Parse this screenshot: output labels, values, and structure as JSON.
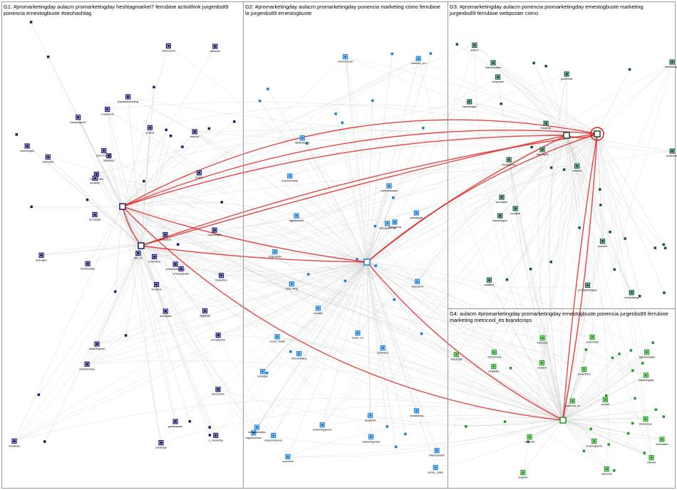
{
  "groups": [
    {
      "id": "G1",
      "title": "G1: #promarketingday aulacm promarketingday heshtagmarket7 ferrubioe activithink jurgenbs89 ponencia ernestogbuste #seohashtag",
      "color": "#1a1a6e"
    },
    {
      "id": "G2",
      "title": "G2: #promarketingday aulacm promarketingday ponencia marketing cómo ferrubioe la jurgenbs89 ernestogbuste",
      "color": "#1a7fd6"
    },
    {
      "id": "G3",
      "title": "G3: #promarketingday aulacm ponencia promarketingday ernestogbuste marketing jurgenbs89 ferrubioe webposter cómo",
      "color": "#0e5a36"
    },
    {
      "id": "G4",
      "title": "G4: aulacm #promarketingday promarketingday ernestogbuste ponencia jurgenbs89 ferrubioe marketing metricool_es brandcrops",
      "color": "#1f9e1f"
    }
  ],
  "nodes": {
    "G1": [
      "mediacafe",
      "heashtagmkt7",
      "promarketingday",
      "marketersday",
      "ernestogbuste",
      "activithink",
      "rebollok",
      "marketingchef",
      "valencianos",
      "anbsuarez",
      "ebooksmkt",
      "pedroglez",
      "jornadasmkt",
      "ferrubioe",
      "e_marketing",
      "socialmedia",
      "anafrai",
      "nachoalfa",
      "idatadays",
      "toniandreu",
      "gestionaweb",
      "marketingvlc",
      "mkt_vlc",
      "cmvalencia",
      "sefrancis",
      "jurcanfly",
      "crisdesign",
      "plazadelmarketing",
      "ponencia_vlc",
      "tecnologia",
      "businessday",
      "analisis",
      "marketing20",
      "digitalday",
      "contenidos"
    ],
    "G2": [
      "marketingdirecto",
      "jurgenbs89",
      "miguelcebrian",
      "marketingsocial",
      "socialmediatips",
      "coachmkt",
      "marivi_cm",
      "davidnavarro",
      "rosa_mktg",
      "soniadiaz",
      "markettcd",
      "comunicacion",
      "emprendedores",
      "social_media",
      "martinez_cm",
      "elmarketing",
      "mktemprende",
      "lauragarcia",
      "infomarketing",
      "brandingok",
      "digitalizacion",
      "vivianamkt",
      "seoweb",
      "contenidosweb",
      "marcapersonal",
      "ecommercesp",
      "ventas_online",
      "sergiomkt"
    ],
    "G3": [
      "aulacm",
      "promarketingday",
      "webposter",
      "marketingpro",
      "tiendaonline",
      "elmarketer",
      "josemkt",
      "mkt_digital",
      "rrssmanager",
      "comunitymgr",
      "analitica",
      "growthmkt",
      "seomaster",
      "redessociales",
      "sociallab",
      "clickmkt",
      "adsmanager",
      "emailmkt"
    ],
    "G4": [
      "ernestogbuste",
      "metricool_es",
      "brandcrops",
      "marketingday",
      "socialrt",
      "cmadrid",
      "contenthub",
      "influmkt",
      "videomkt",
      "agenciadigital",
      "blogmkt",
      "estrategia",
      "mktonline",
      "datosmkt",
      "storyteller",
      "webmaster",
      "ciberprensa",
      "comunidad"
    ]
  },
  "colors": {
    "edge": "#c9c9c9",
    "highlight": "#e01818",
    "border": "#9a9a9a"
  }
}
